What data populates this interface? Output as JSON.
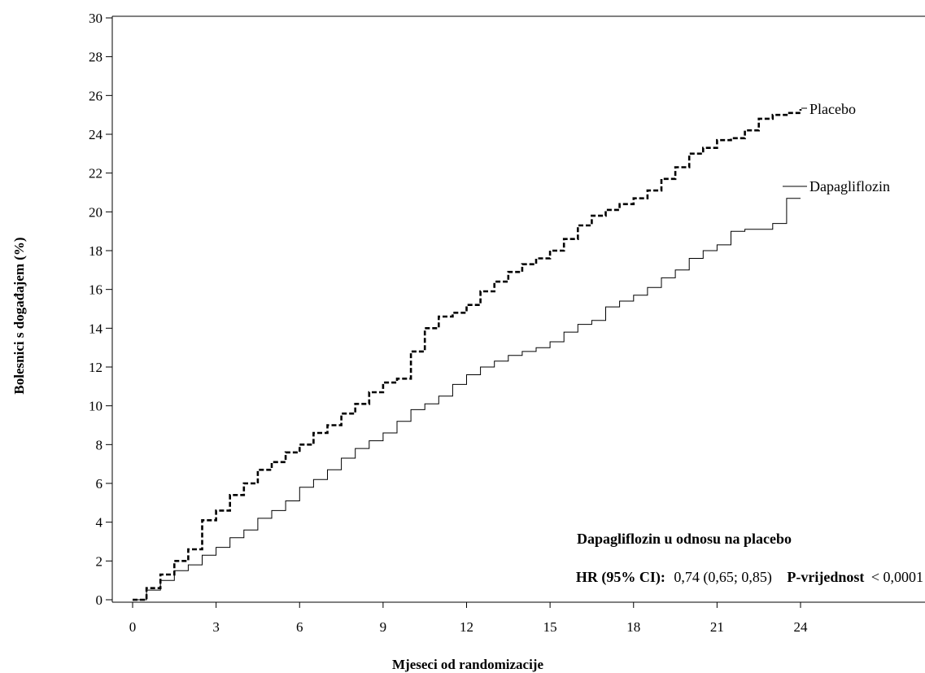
{
  "chart_data": {
    "type": "line",
    "xlabel": "Mjeseci od randomizacije",
    "ylabel": "Bolesnici s događajem (%)",
    "xlim": [
      0,
      24
    ],
    "ylim": [
      0,
      30
    ],
    "x_ticks": [
      "0",
      "3",
      "6",
      "9",
      "12",
      "15",
      "18",
      "21",
      "24"
    ],
    "y_ticks": [
      "0",
      "2",
      "4",
      "6",
      "8",
      "10",
      "12",
      "14",
      "16",
      "18",
      "20",
      "22",
      "24",
      "26",
      "28",
      "30"
    ],
    "grid": false,
    "series": [
      {
        "name": "Placebo",
        "line_style": "dashed",
        "color": "#000000",
        "x": [
          0,
          0.5,
          1,
          1.5,
          2,
          2.5,
          3,
          3.5,
          4,
          4.5,
          5,
          5.5,
          6,
          6.5,
          7,
          7.5,
          8,
          8.5,
          9,
          9.5,
          10,
          10.5,
          11,
          11.5,
          12,
          12.5,
          13,
          13.5,
          14,
          14.5,
          15,
          15.5,
          16,
          16.5,
          17,
          17.5,
          18,
          18.5,
          19,
          19.5,
          20,
          20.5,
          21,
          21.5,
          22,
          22.5,
          23,
          23.5,
          24
        ],
        "y": [
          0,
          0.6,
          1.3,
          2.0,
          2.6,
          4.1,
          4.6,
          5.4,
          6.0,
          6.7,
          7.1,
          7.6,
          8.0,
          8.6,
          9.0,
          9.6,
          10.1,
          10.7,
          11.2,
          11.4,
          12.8,
          14.0,
          14.6,
          14.8,
          15.2,
          15.9,
          16.4,
          16.9,
          17.3,
          17.6,
          18.0,
          18.6,
          19.3,
          19.8,
          20.1,
          20.4,
          20.7,
          21.1,
          21.7,
          22.3,
          23.0,
          23.3,
          23.7,
          23.8,
          24.2,
          24.8,
          25.0,
          25.1,
          25.3
        ]
      },
      {
        "name": "Dapagliflozin",
        "line_style": "solid",
        "color": "#000000",
        "x": [
          0,
          0.5,
          1,
          1.5,
          2,
          2.5,
          3,
          3.5,
          4,
          4.5,
          5,
          5.5,
          6,
          6.5,
          7,
          7.5,
          8,
          8.5,
          9,
          9.5,
          10,
          10.5,
          11,
          11.5,
          12,
          12.5,
          13,
          13.5,
          14,
          14.5,
          15,
          15.5,
          16,
          16.5,
          17,
          17.5,
          18,
          18.5,
          19,
          19.5,
          20,
          20.5,
          21,
          21.5,
          22,
          22.5,
          23,
          23.5,
          24
        ],
        "y": [
          0,
          0.5,
          1.0,
          1.5,
          1.8,
          2.3,
          2.7,
          3.2,
          3.6,
          4.2,
          4.6,
          5.1,
          5.8,
          6.2,
          6.7,
          7.3,
          7.8,
          8.2,
          8.6,
          9.2,
          9.8,
          10.1,
          10.5,
          11.1,
          11.6,
          12.0,
          12.3,
          12.6,
          12.8,
          13.0,
          13.3,
          13.8,
          14.2,
          14.4,
          15.1,
          15.4,
          15.7,
          16.1,
          16.6,
          17.0,
          17.6,
          18.0,
          18.3,
          19.0,
          19.1,
          19.1,
          19.4,
          20.7,
          20.7
        ]
      }
    ],
    "annotation": {
      "title": "Dapagliflozin u odnosu na placebo",
      "hr_label": "HR (95% CI):",
      "hr_value": "0,74 (0,65; 0,85)",
      "p_label": "P-vrijednost",
      "p_value": "< 0,0001"
    }
  }
}
